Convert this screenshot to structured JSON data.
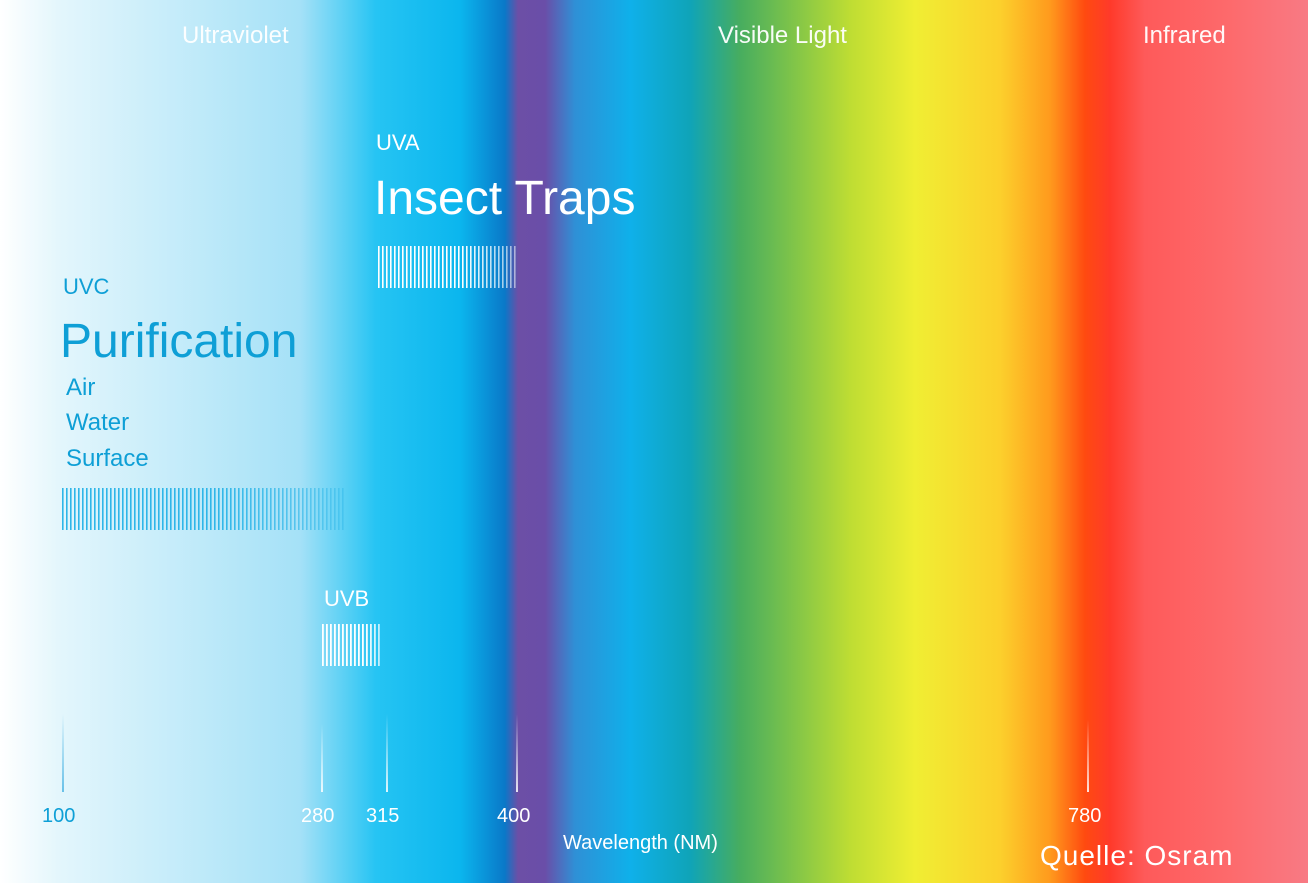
{
  "regions": {
    "ultraviolet": "Ultraviolet",
    "visible": "Visible Light",
    "infrared": "Infrared"
  },
  "uvc": {
    "band": "UVC",
    "application": "Purification",
    "items": [
      "Air",
      "Water",
      "Surface"
    ],
    "range_nm": [
      100,
      280
    ]
  },
  "uvb": {
    "band": "UVB",
    "range_nm": [
      280,
      315
    ]
  },
  "uva": {
    "band": "UVA",
    "application": "Insect Traps",
    "range_nm": [
      315,
      400
    ]
  },
  "axis": {
    "label": "Wavelength (NM)",
    "ticks": [
      "100",
      "280",
      "315",
      "400",
      "780"
    ]
  },
  "source": "Quelle: Osram",
  "colors": {
    "uv_text": "#0e9fd6",
    "label_white": "#ffffff"
  }
}
